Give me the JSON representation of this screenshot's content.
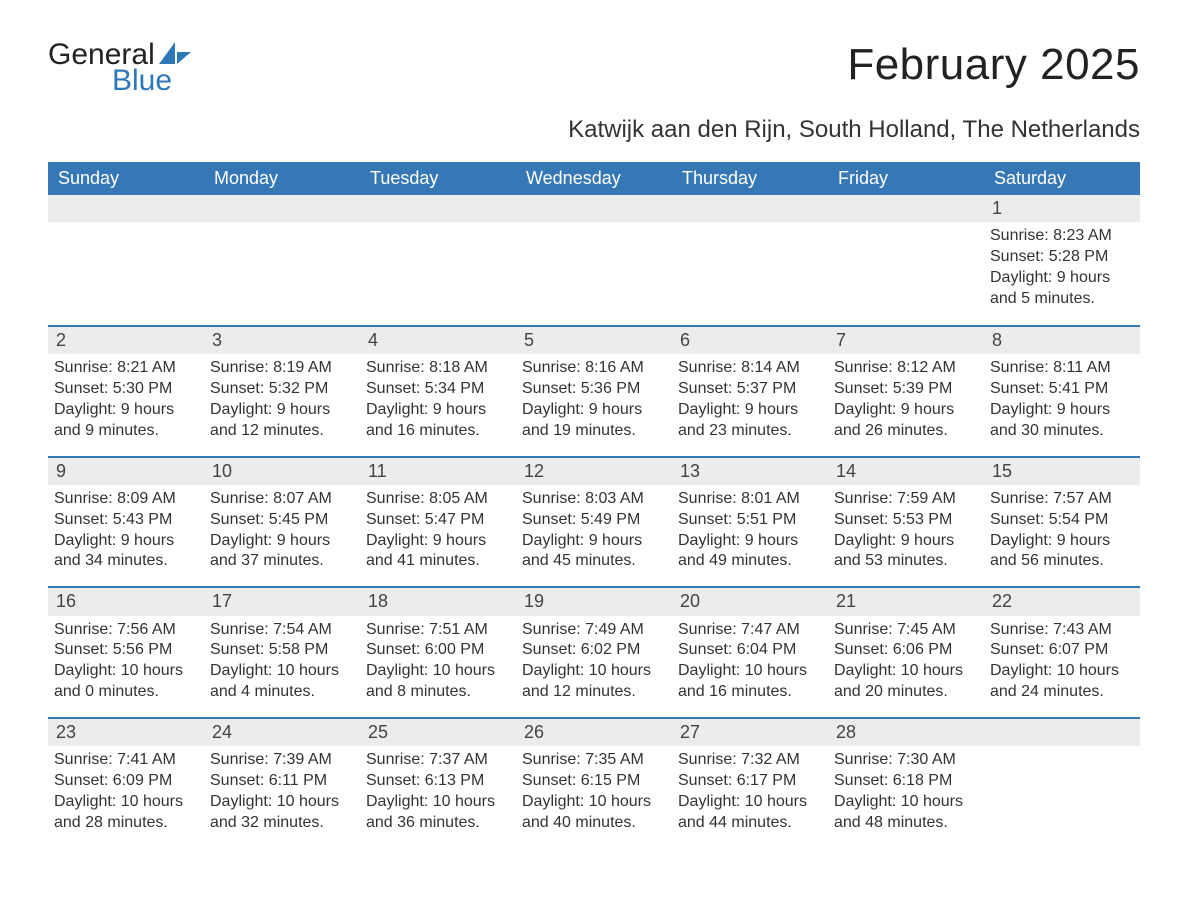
{
  "logo": {
    "general": "General",
    "blue": "Blue",
    "general_color": "#222222",
    "blue_color": "#2f78b7",
    "sail_color": "#2f78b7"
  },
  "header": {
    "month_title": "February 2025",
    "location": "Katwijk aan den Rijn, South Holland, The Netherlands"
  },
  "colors": {
    "header_bg": "#3678b5",
    "header_text": "#ffffff",
    "daynum_bg": "#ececec",
    "week_border": "#3678b5",
    "body_text": "#333333",
    "page_bg": "#ffffff"
  },
  "typography": {
    "month_title_fontsize": 44,
    "location_fontsize": 24,
    "dow_fontsize": 18,
    "daynum_fontsize": 18,
    "body_fontsize": 16
  },
  "calendar": {
    "type": "calendar_table",
    "days_of_week": [
      "Sunday",
      "Monday",
      "Tuesday",
      "Wednesday",
      "Thursday",
      "Friday",
      "Saturday"
    ],
    "weeks": [
      [
        null,
        null,
        null,
        null,
        null,
        null,
        {
          "day": "1",
          "sunrise": "Sunrise: 8:23 AM",
          "sunset": "Sunset: 5:28 PM",
          "daylight1": "Daylight: 9 hours",
          "daylight2": "and 5 minutes."
        }
      ],
      [
        {
          "day": "2",
          "sunrise": "Sunrise: 8:21 AM",
          "sunset": "Sunset: 5:30 PM",
          "daylight1": "Daylight: 9 hours",
          "daylight2": "and 9 minutes."
        },
        {
          "day": "3",
          "sunrise": "Sunrise: 8:19 AM",
          "sunset": "Sunset: 5:32 PM",
          "daylight1": "Daylight: 9 hours",
          "daylight2": "and 12 minutes."
        },
        {
          "day": "4",
          "sunrise": "Sunrise: 8:18 AM",
          "sunset": "Sunset: 5:34 PM",
          "daylight1": "Daylight: 9 hours",
          "daylight2": "and 16 minutes."
        },
        {
          "day": "5",
          "sunrise": "Sunrise: 8:16 AM",
          "sunset": "Sunset: 5:36 PM",
          "daylight1": "Daylight: 9 hours",
          "daylight2": "and 19 minutes."
        },
        {
          "day": "6",
          "sunrise": "Sunrise: 8:14 AM",
          "sunset": "Sunset: 5:37 PM",
          "daylight1": "Daylight: 9 hours",
          "daylight2": "and 23 minutes."
        },
        {
          "day": "7",
          "sunrise": "Sunrise: 8:12 AM",
          "sunset": "Sunset: 5:39 PM",
          "daylight1": "Daylight: 9 hours",
          "daylight2": "and 26 minutes."
        },
        {
          "day": "8",
          "sunrise": "Sunrise: 8:11 AM",
          "sunset": "Sunset: 5:41 PM",
          "daylight1": "Daylight: 9 hours",
          "daylight2": "and 30 minutes."
        }
      ],
      [
        {
          "day": "9",
          "sunrise": "Sunrise: 8:09 AM",
          "sunset": "Sunset: 5:43 PM",
          "daylight1": "Daylight: 9 hours",
          "daylight2": "and 34 minutes."
        },
        {
          "day": "10",
          "sunrise": "Sunrise: 8:07 AM",
          "sunset": "Sunset: 5:45 PM",
          "daylight1": "Daylight: 9 hours",
          "daylight2": "and 37 minutes."
        },
        {
          "day": "11",
          "sunrise": "Sunrise: 8:05 AM",
          "sunset": "Sunset: 5:47 PM",
          "daylight1": "Daylight: 9 hours",
          "daylight2": "and 41 minutes."
        },
        {
          "day": "12",
          "sunrise": "Sunrise: 8:03 AM",
          "sunset": "Sunset: 5:49 PM",
          "daylight1": "Daylight: 9 hours",
          "daylight2": "and 45 minutes."
        },
        {
          "day": "13",
          "sunrise": "Sunrise: 8:01 AM",
          "sunset": "Sunset: 5:51 PM",
          "daylight1": "Daylight: 9 hours",
          "daylight2": "and 49 minutes."
        },
        {
          "day": "14",
          "sunrise": "Sunrise: 7:59 AM",
          "sunset": "Sunset: 5:53 PM",
          "daylight1": "Daylight: 9 hours",
          "daylight2": "and 53 minutes."
        },
        {
          "day": "15",
          "sunrise": "Sunrise: 7:57 AM",
          "sunset": "Sunset: 5:54 PM",
          "daylight1": "Daylight: 9 hours",
          "daylight2": "and 56 minutes."
        }
      ],
      [
        {
          "day": "16",
          "sunrise": "Sunrise: 7:56 AM",
          "sunset": "Sunset: 5:56 PM",
          "daylight1": "Daylight: 10 hours",
          "daylight2": "and 0 minutes."
        },
        {
          "day": "17",
          "sunrise": "Sunrise: 7:54 AM",
          "sunset": "Sunset: 5:58 PM",
          "daylight1": "Daylight: 10 hours",
          "daylight2": "and 4 minutes."
        },
        {
          "day": "18",
          "sunrise": "Sunrise: 7:51 AM",
          "sunset": "Sunset: 6:00 PM",
          "daylight1": "Daylight: 10 hours",
          "daylight2": "and 8 minutes."
        },
        {
          "day": "19",
          "sunrise": "Sunrise: 7:49 AM",
          "sunset": "Sunset: 6:02 PM",
          "daylight1": "Daylight: 10 hours",
          "daylight2": "and 12 minutes."
        },
        {
          "day": "20",
          "sunrise": "Sunrise: 7:47 AM",
          "sunset": "Sunset: 6:04 PM",
          "daylight1": "Daylight: 10 hours",
          "daylight2": "and 16 minutes."
        },
        {
          "day": "21",
          "sunrise": "Sunrise: 7:45 AM",
          "sunset": "Sunset: 6:06 PM",
          "daylight1": "Daylight: 10 hours",
          "daylight2": "and 20 minutes."
        },
        {
          "day": "22",
          "sunrise": "Sunrise: 7:43 AM",
          "sunset": "Sunset: 6:07 PM",
          "daylight1": "Daylight: 10 hours",
          "daylight2": "and 24 minutes."
        }
      ],
      [
        {
          "day": "23",
          "sunrise": "Sunrise: 7:41 AM",
          "sunset": "Sunset: 6:09 PM",
          "daylight1": "Daylight: 10 hours",
          "daylight2": "and 28 minutes."
        },
        {
          "day": "24",
          "sunrise": "Sunrise: 7:39 AM",
          "sunset": "Sunset: 6:11 PM",
          "daylight1": "Daylight: 10 hours",
          "daylight2": "and 32 minutes."
        },
        {
          "day": "25",
          "sunrise": "Sunrise: 7:37 AM",
          "sunset": "Sunset: 6:13 PM",
          "daylight1": "Daylight: 10 hours",
          "daylight2": "and 36 minutes."
        },
        {
          "day": "26",
          "sunrise": "Sunrise: 7:35 AM",
          "sunset": "Sunset: 6:15 PM",
          "daylight1": "Daylight: 10 hours",
          "daylight2": "and 40 minutes."
        },
        {
          "day": "27",
          "sunrise": "Sunrise: 7:32 AM",
          "sunset": "Sunset: 6:17 PM",
          "daylight1": "Daylight: 10 hours",
          "daylight2": "and 44 minutes."
        },
        {
          "day": "28",
          "sunrise": "Sunrise: 7:30 AM",
          "sunset": "Sunset: 6:18 PM",
          "daylight1": "Daylight: 10 hours",
          "daylight2": "and 48 minutes."
        },
        null
      ]
    ]
  }
}
